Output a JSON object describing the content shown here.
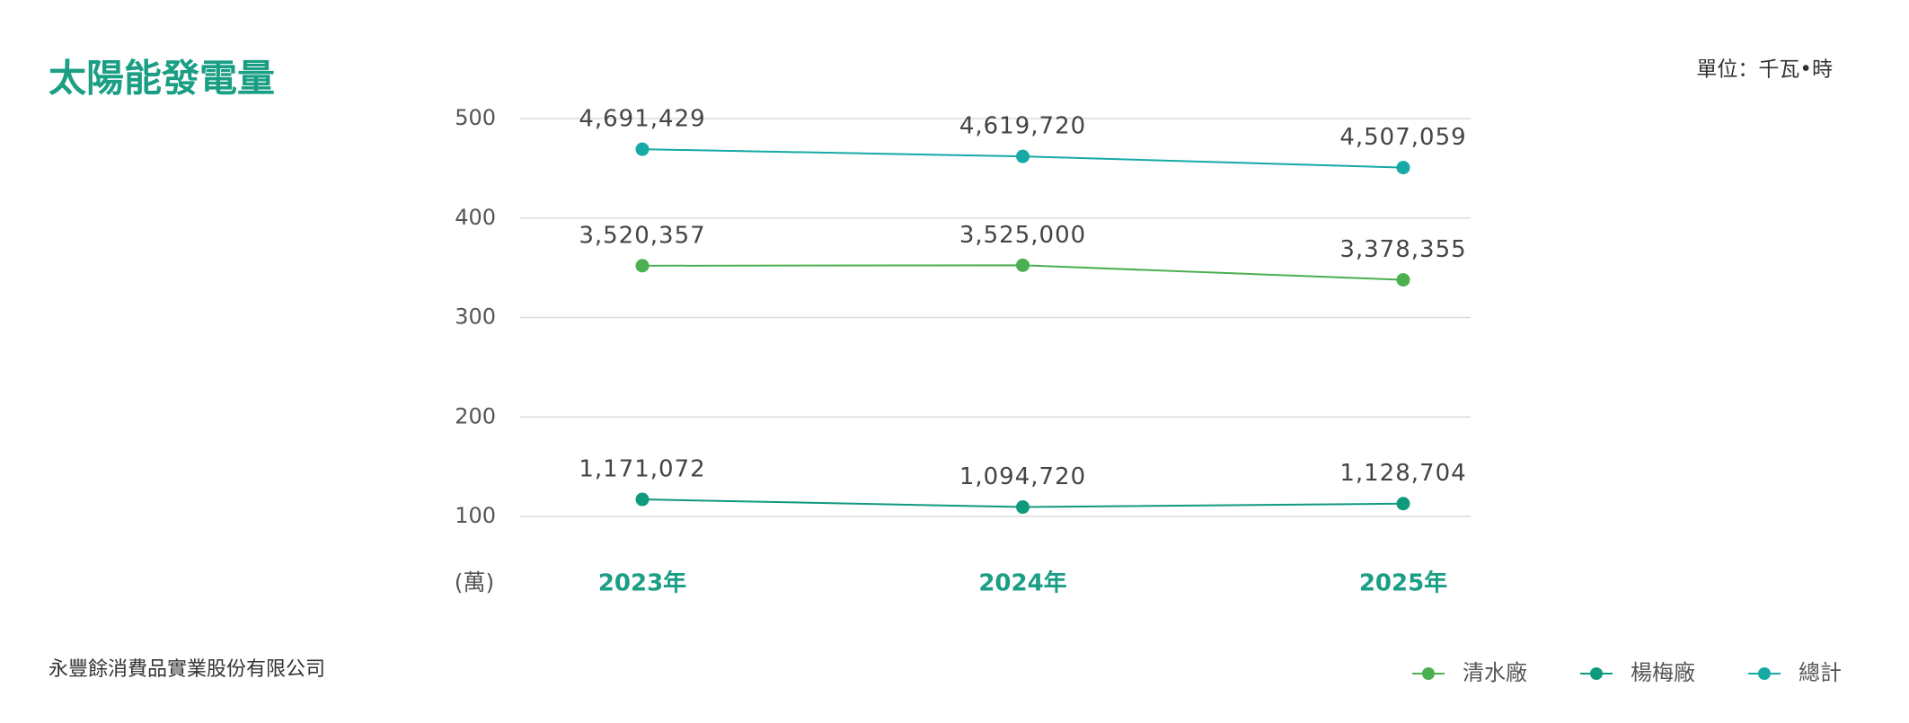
{
  "chart_data": {
    "type": "line",
    "title": "太陽能發電量",
    "unit_label": "單位：千瓦•時",
    "y_axis_label": "(萬)",
    "footer": "永豐餘消費品實業股份有限公司",
    "categories": [
      "2023年",
      "2024年",
      "2025年"
    ],
    "series": [
      {
        "name": "清水廠",
        "color": "#4caf50",
        "values": [
          352.0357,
          352.5,
          337.8355
        ],
        "value_labels": [
          "3,520,357",
          "3,525,000",
          "3,378,355"
        ]
      },
      {
        "name": "楊梅廠",
        "color": "#0f9a7e",
        "values": [
          117.1072,
          109.472,
          112.8704
        ],
        "value_labels": [
          "1,171,072",
          "1,094,720",
          "1,128,704"
        ]
      },
      {
        "name": "總計",
        "color": "#17a9a6",
        "values": [
          469.1429,
          461.972,
          450.7059
        ],
        "value_labels": [
          "4,691,429",
          "4,619,720",
          "4,507,059"
        ]
      }
    ],
    "ylim": [
      100,
      500
    ],
    "yticks": [
      100,
      200,
      300,
      400,
      500
    ],
    "grid": true
  }
}
